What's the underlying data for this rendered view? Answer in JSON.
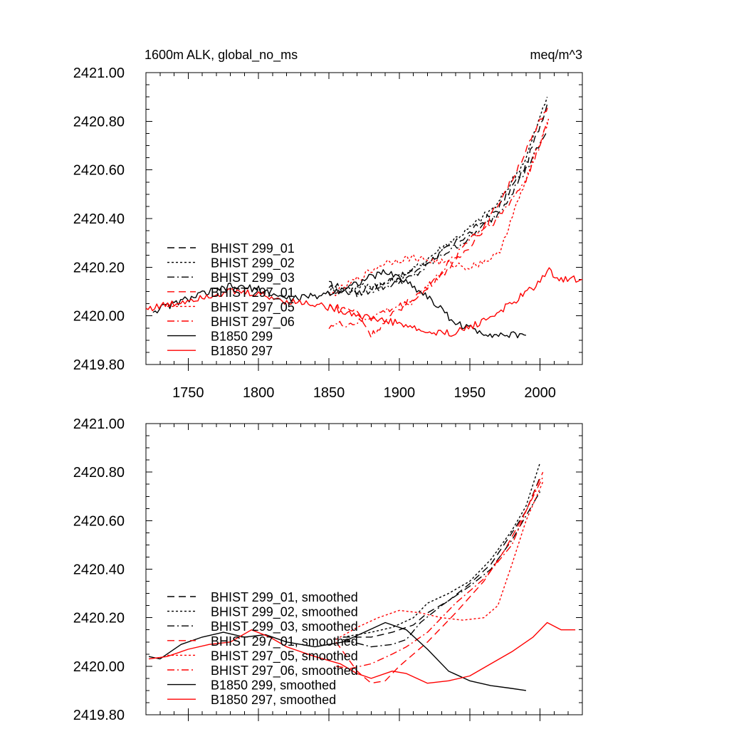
{
  "styles": {
    "dash": {
      "color": "#000000",
      "dash": "10,6"
    },
    "dot": {
      "color": "#000000",
      "dash": "3,3"
    },
    "dashdot": {
      "color": "#000000",
      "dash": "10,4,2,4"
    },
    "reddash": {
      "color": "#ff0000",
      "dash": "10,6"
    },
    "reddot": {
      "color": "#ff0000",
      "dash": "3,3"
    },
    "reddashdot": {
      "color": "#ff0000",
      "dash": "10,4,2,4"
    },
    "solid": {
      "color": "#000000",
      "dash": ""
    },
    "redsolid": {
      "color": "#ff0000",
      "dash": ""
    }
  },
  "chart_data": [
    {
      "type": "line",
      "title_left": "1600m ALK, global_no_ms",
      "title_right": "meq/m^3",
      "xlim": [
        1720,
        2030
      ],
      "ylim": [
        2419.8,
        2421.0
      ],
      "x_ticks": [
        "1750",
        "1800",
        "1850",
        "1900",
        "1950",
        "2000"
      ],
      "x_tick_values": [
        1750,
        1800,
        1850,
        1900,
        1950,
        2000
      ],
      "y_ticks": [
        "2419.80",
        "2420.00",
        "2420.20",
        "2420.40",
        "2420.60",
        "2420.80",
        "2421.00"
      ],
      "y_tick_values": [
        2419.8,
        2420.0,
        2420.2,
        2420.4,
        2420.6,
        2420.8,
        2421.0
      ],
      "noisy": true,
      "series": [
        {
          "name": "BHIST 299_01",
          "style": "dash",
          "x": [
            1850,
            1870,
            1890,
            1910,
            1930,
            1950,
            1970,
            1990,
            2005
          ],
          "y": [
            2420.13,
            2420.1,
            2420.14,
            2420.18,
            2420.26,
            2420.34,
            2420.44,
            2420.62,
            2420.87
          ]
        },
        {
          "name": "BHIST 299_02",
          "style": "dot",
          "x": [
            1850,
            1870,
            1890,
            1910,
            1930,
            1950,
            1970,
            1990,
            2005
          ],
          "y": [
            2420.1,
            2420.12,
            2420.13,
            2420.19,
            2420.28,
            2420.36,
            2420.46,
            2420.65,
            2420.9
          ]
        },
        {
          "name": "BHIST 299_03",
          "style": "dashdot",
          "x": [
            1850,
            1870,
            1890,
            1910,
            1930,
            1950,
            1970,
            1990,
            2005
          ],
          "y": [
            2420.12,
            2420.09,
            2420.12,
            2420.16,
            2420.25,
            2420.32,
            2420.42,
            2420.6,
            2420.76
          ]
        },
        {
          "name": "BHIST 297_01",
          "style": "reddash",
          "x": [
            1850,
            1870,
            1880,
            1900,
            1920,
            1940,
            1960,
            1980,
            2006
          ],
          "y": [
            2420.04,
            2420.02,
            2419.92,
            2420.03,
            2420.12,
            2420.22,
            2420.36,
            2420.56,
            2420.87
          ]
        },
        {
          "name": "BHIST 297_05",
          "style": "reddot",
          "x": [
            1850,
            1870,
            1890,
            1910,
            1930,
            1950,
            1970,
            1985,
            2006
          ],
          "y": [
            2420.08,
            2420.15,
            2420.22,
            2420.24,
            2420.22,
            2420.2,
            2420.25,
            2420.48,
            2420.81
          ]
        },
        {
          "name": "BHIST 297_06",
          "style": "reddashdot",
          "x": [
            1850,
            1870,
            1890,
            1910,
            1930,
            1950,
            1970,
            1990,
            2006
          ],
          "y": [
            2419.96,
            2419.97,
            2420.02,
            2420.06,
            2420.18,
            2420.32,
            2420.4,
            2420.56,
            2420.8
          ]
        },
        {
          "name": "B1850 299",
          "style": "solid",
          "x": [
            1725,
            1740,
            1760,
            1780,
            1800,
            1820,
            1840,
            1860,
            1880,
            1890,
            1900,
            1920,
            1940,
            1960,
            1975,
            1990
          ],
          "y": [
            2420.02,
            2420.05,
            2420.09,
            2420.12,
            2420.11,
            2420.07,
            2420.08,
            2420.11,
            2420.16,
            2420.18,
            2420.16,
            2420.08,
            2419.97,
            2419.93,
            2419.92,
            2419.92
          ]
        },
        {
          "name": "B1850 297",
          "style": "redsolid",
          "x": [
            1720,
            1740,
            1760,
            1780,
            1800,
            1820,
            1840,
            1860,
            1880,
            1900,
            1920,
            1940,
            1960,
            1980,
            2000,
            2005,
            2015,
            2030
          ],
          "y": [
            2420.03,
            2420.05,
            2420.08,
            2420.1,
            2420.09,
            2420.06,
            2420.05,
            2420.02,
            2419.99,
            2419.97,
            2419.93,
            2419.93,
            2419.98,
            2420.05,
            2420.14,
            2420.19,
            2420.15,
            2420.15
          ]
        }
      ]
    },
    {
      "type": "line",
      "xlim": [
        1720,
        2030
      ],
      "ylim": [
        2419.8,
        2421.0
      ],
      "x_ticks": [],
      "x_tick_values": [
        1750,
        1800,
        1850,
        1900,
        1950,
        2000
      ],
      "y_ticks": [
        "2419.80",
        "2420.00",
        "2420.20",
        "2420.40",
        "2420.60",
        "2420.80",
        "2421.00"
      ],
      "y_tick_values": [
        2419.8,
        2420.0,
        2420.2,
        2420.4,
        2420.6,
        2420.8,
        2421.0
      ],
      "noisy": false,
      "series": [
        {
          "name": "BHIST 299_01, smoothed",
          "style": "dash",
          "x": [
            1860,
            1880,
            1895,
            1910,
            1920,
            1935,
            1950,
            1965,
            1980,
            1990,
            2000
          ],
          "y": [
            2420.12,
            2420.12,
            2420.14,
            2420.17,
            2420.22,
            2420.27,
            2420.34,
            2420.42,
            2420.55,
            2420.64,
            2420.78
          ]
        },
        {
          "name": "BHIST 299_02, smoothed",
          "style": "dot",
          "x": [
            1860,
            1880,
            1895,
            1910,
            1920,
            1935,
            1950,
            1965,
            1980,
            1990,
            2000
          ],
          "y": [
            2420.12,
            2420.14,
            2420.16,
            2420.2,
            2420.26,
            2420.3,
            2420.35,
            2420.44,
            2420.56,
            2420.66,
            2420.84
          ]
        },
        {
          "name": "BHIST 299_03, smoothed",
          "style": "dashdot",
          "x": [
            1860,
            1880,
            1895,
            1905,
            1915,
            1930,
            1950,
            1965,
            1980,
            1990,
            2000
          ],
          "y": [
            2420.11,
            2420.08,
            2420.09,
            2420.11,
            2420.18,
            2420.25,
            2420.33,
            2420.4,
            2420.52,
            2420.62,
            2420.72
          ]
        },
        {
          "name": "BHIST 297_01, smoothed",
          "style": "reddash",
          "x": [
            1855,
            1870,
            1880,
            1890,
            1900,
            1920,
            1940,
            1960,
            1975,
            1990,
            2002
          ],
          "y": [
            2420.1,
            2419.98,
            2419.93,
            2419.94,
            2420.0,
            2420.1,
            2420.22,
            2420.35,
            2420.48,
            2420.64,
            2420.8
          ]
        },
        {
          "name": "BHIST 297_05, smoothed",
          "style": "reddot",
          "x": [
            1855,
            1870,
            1885,
            1900,
            1915,
            1930,
            1945,
            1960,
            1970,
            1980,
            1990,
            2002
          ],
          "y": [
            2420.11,
            2420.16,
            2420.2,
            2420.23,
            2420.22,
            2420.2,
            2420.19,
            2420.2,
            2420.25,
            2420.42,
            2420.6,
            2420.76
          ]
        },
        {
          "name": "BHIST 297_06, smoothed",
          "style": "reddashdot",
          "x": [
            1855,
            1865,
            1880,
            1895,
            1905,
            1920,
            1940,
            1960,
            1980,
            1990,
            2002
          ],
          "y": [
            2420.0,
            2419.99,
            2420.01,
            2420.05,
            2420.08,
            2420.14,
            2420.26,
            2420.36,
            2420.5,
            2420.64,
            2420.78
          ]
        },
        {
          "name": "B1850 299, smoothed",
          "style": "solid",
          "x": [
            1722,
            1730,
            1745,
            1760,
            1775,
            1790,
            1805,
            1820,
            1840,
            1860,
            1875,
            1890,
            1905,
            1920,
            1935,
            1950,
            1965,
            1978,
            1990
          ],
          "y": [
            2420.04,
            2420.03,
            2420.09,
            2420.12,
            2420.14,
            2420.12,
            2420.13,
            2420.1,
            2420.08,
            2420.1,
            2420.14,
            2420.18,
            2420.15,
            2420.07,
            2419.98,
            2419.94,
            2419.92,
            2419.91,
            2419.9
          ]
        },
        {
          "name": "B1850 297, smoothed",
          "style": "redsolid",
          "x": [
            1722,
            1735,
            1750,
            1765,
            1780,
            1795,
            1808,
            1820,
            1840,
            1858,
            1870,
            1880,
            1895,
            1905,
            1920,
            1935,
            1950,
            1965,
            1980,
            1995,
            2005,
            2015,
            2025
          ],
          "y": [
            2420.03,
            2420.04,
            2420.07,
            2420.09,
            2420.1,
            2420.15,
            2420.12,
            2420.08,
            2420.04,
            2420.01,
            2419.97,
            2419.95,
            2419.98,
            2419.97,
            2419.93,
            2419.94,
            2419.96,
            2420.01,
            2420.06,
            2420.12,
            2420.18,
            2420.15,
            2420.15
          ]
        }
      ]
    }
  ]
}
